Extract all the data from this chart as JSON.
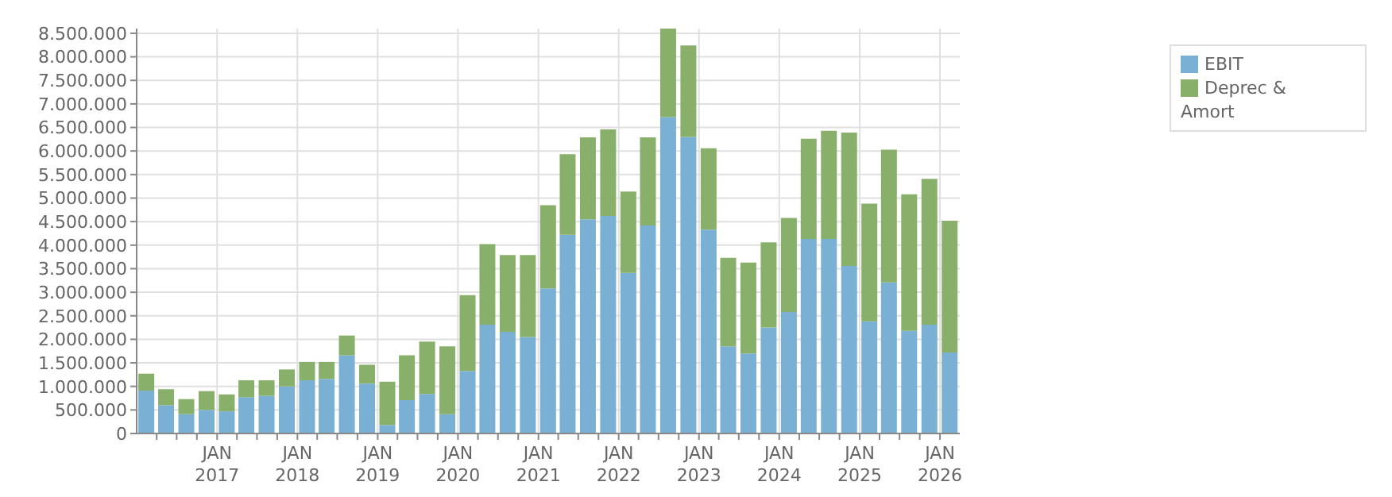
{
  "chart_data": {
    "type": "bar",
    "stacked": true,
    "x": [
      "2016-02-15",
      "2016-05-15",
      "2016-08-15",
      "2016-11-15",
      "2017-02-15",
      "2017-05-15",
      "2017-08-15",
      "2017-11-15",
      "2018-02-15",
      "2018-05-15",
      "2018-08-15",
      "2018-11-15",
      "2019-02-15",
      "2019-05-15",
      "2019-08-15",
      "2019-11-15",
      "2020-02-15",
      "2020-05-15",
      "2020-08-15",
      "2020-11-15",
      "2021-02-15",
      "2021-05-15",
      "2021-08-15",
      "2021-11-15",
      "2022-02-15",
      "2022-05-15",
      "2022-08-15",
      "2022-11-15",
      "2023-02-15",
      "2023-05-15",
      "2023-08-15",
      "2023-11-15",
      "2024-02-15",
      "2024-05-15",
      "2024-08-15",
      "2024-11-15",
      "2025-02-15",
      "2025-05-15",
      "2025-08-15",
      "2025-11-15",
      "2026-02-15"
    ],
    "series": [
      {
        "name": "EBIT",
        "color": "#7ab0d4",
        "values": [
          910000,
          600000,
          410000,
          500000,
          470000,
          770000,
          800000,
          1000000,
          1130000,
          1160000,
          1660000,
          1060000,
          180000,
          710000,
          840000,
          410000,
          1330000,
          2310000,
          2160000,
          2050000,
          3080000,
          4220000,
          4550000,
          4620000,
          3410000,
          4420000,
          6720000,
          6300000,
          4330000,
          1850000,
          1700000,
          2250000,
          2580000,
          4130000,
          4130000,
          3560000,
          2380000,
          3210000,
          2180000,
          2310000,
          1720000
        ]
      },
      {
        "name": "Deprec & Amort",
        "color": "#88b06a",
        "values": [
          360000,
          340000,
          320000,
          400000,
          360000,
          360000,
          330000,
          360000,
          390000,
          360000,
          420000,
          400000,
          920000,
          950000,
          1110000,
          1440000,
          1610000,
          1710000,
          1630000,
          1740000,
          1770000,
          1710000,
          1740000,
          1840000,
          1730000,
          1870000,
          1880000,
          1940000,
          1730000,
          1880000,
          1930000,
          1810000,
          2000000,
          2130000,
          2300000,
          2830000,
          2500000,
          2820000,
          2900000,
          3100000,
          2800000
        ]
      }
    ],
    "xlim": [
      "2016-01-01",
      "2026-04-01"
    ],
    "xticks": [
      {
        "value": "2016-04-01",
        "label": null
      },
      {
        "value": "2016-07-01",
        "label": null
      },
      {
        "value": "2016-10-01",
        "label": null
      },
      {
        "value": "2017-01-01",
        "label": "JAN\n2017"
      },
      {
        "value": "2017-04-01",
        "label": null
      },
      {
        "value": "2017-07-01",
        "label": null
      },
      {
        "value": "2017-10-01",
        "label": null
      },
      {
        "value": "2018-01-01",
        "label": "JAN\n2018"
      },
      {
        "value": "2018-04-01",
        "label": null
      },
      {
        "value": "2018-07-01",
        "label": null
      },
      {
        "value": "2018-10-01",
        "label": null
      },
      {
        "value": "2019-01-01",
        "label": "JAN\n2019"
      },
      {
        "value": "2019-04-01",
        "label": null
      },
      {
        "value": "2019-07-01",
        "label": null
      },
      {
        "value": "2019-10-01",
        "label": null
      },
      {
        "value": "2020-01-01",
        "label": "JAN\n2020"
      },
      {
        "value": "2020-04-01",
        "label": null
      },
      {
        "value": "2020-07-01",
        "label": null
      },
      {
        "value": "2020-10-01",
        "label": null
      },
      {
        "value": "2021-01-01",
        "label": "JAN\n2021"
      },
      {
        "value": "2021-04-01",
        "label": null
      },
      {
        "value": "2021-07-01",
        "label": null
      },
      {
        "value": "2021-10-01",
        "label": null
      },
      {
        "value": "2022-01-01",
        "label": "JAN\n2022"
      },
      {
        "value": "2022-04-01",
        "label": null
      },
      {
        "value": "2022-07-01",
        "label": null
      },
      {
        "value": "2022-10-01",
        "label": null
      },
      {
        "value": "2023-01-01",
        "label": "JAN\n2023"
      },
      {
        "value": "2023-04-01",
        "label": null
      },
      {
        "value": "2023-07-01",
        "label": null
      },
      {
        "value": "2023-10-01",
        "label": null
      },
      {
        "value": "2024-01-01",
        "label": "JAN\n2024"
      },
      {
        "value": "2024-04-01",
        "label": null
      },
      {
        "value": "2024-07-01",
        "label": null
      },
      {
        "value": "2024-10-01",
        "label": null
      },
      {
        "value": "2025-01-01",
        "label": "JAN\n2025"
      },
      {
        "value": "2025-04-01",
        "label": null
      },
      {
        "value": "2025-07-01",
        "label": null
      },
      {
        "value": "2025-10-01",
        "label": null
      },
      {
        "value": "2026-01-01",
        "label": "JAN\n2026"
      }
    ],
    "ylim": [
      0,
      8600000
    ],
    "yticks": [
      0,
      {
        "value": 500000,
        "label": "500.000"
      },
      {
        "value": 1000000,
        "label": "1.000.000"
      },
      {
        "value": 1500000,
        "label": "1.500.000"
      },
      {
        "value": 2000000,
        "label": "2.000.000"
      },
      {
        "value": 2500000,
        "label": "2.500.000"
      },
      {
        "value": 3000000,
        "label": "3.000.000"
      },
      {
        "value": 3500000,
        "label": "3.500.000"
      },
      {
        "value": 4000000,
        "label": "4.000.000"
      },
      {
        "value": 4500000,
        "label": "4.500.000"
      },
      {
        "value": 5000000,
        "label": "5.000.000"
      },
      {
        "value": 5500000,
        "label": "5.500.000"
      },
      {
        "value": 6000000,
        "label": "6.000.000"
      },
      {
        "value": 6500000,
        "label": "6.500.000"
      },
      {
        "value": 7000000,
        "label": "7.000.000"
      },
      {
        "value": 7500000,
        "label": "7.500.000"
      },
      {
        "value": 8000000,
        "label": "8.000.000"
      },
      {
        "value": 8500000,
        "label": "8.500.000"
      }
    ],
    "grid": true,
    "legend": "top right"
  }
}
